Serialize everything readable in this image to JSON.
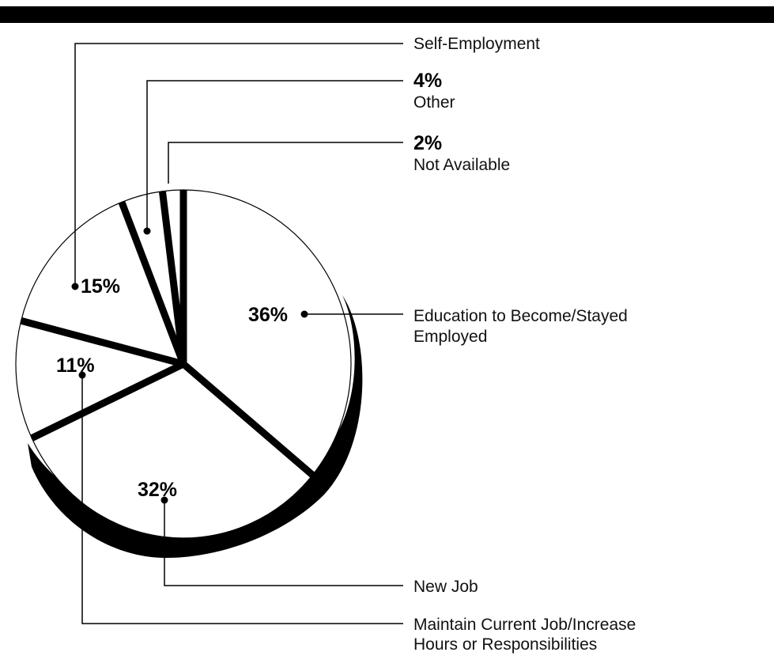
{
  "chart_data": {
    "type": "pie",
    "categories": [
      "Education to Become/Stayed Employed",
      "New Job",
      "Maintain Current Job/Increase Hours or Responsibilities",
      "Self-Employment",
      "Other",
      "Not Available"
    ],
    "values": [
      36,
      32,
      11,
      15,
      4,
      2
    ],
    "value_labels": [
      "36%",
      "32%",
      "11%",
      "15%",
      "4%",
      "2%"
    ],
    "label_lines": {
      "self_employment": [
        "Self-Employment"
      ],
      "other": [
        "Other"
      ],
      "not_available": [
        "Not Available"
      ],
      "education": [
        "Education to Become/Stayed",
        "Employed"
      ],
      "new_job": [
        "New Job"
      ],
      "maintain": [
        "Maintain Current Job/Increase",
        "Hours or Responsibilities"
      ]
    },
    "legend": "callout labels",
    "colors": {
      "fill": "#ffffff",
      "stroke": "#000000",
      "shadow": "#000000",
      "bar": "#000000"
    }
  }
}
